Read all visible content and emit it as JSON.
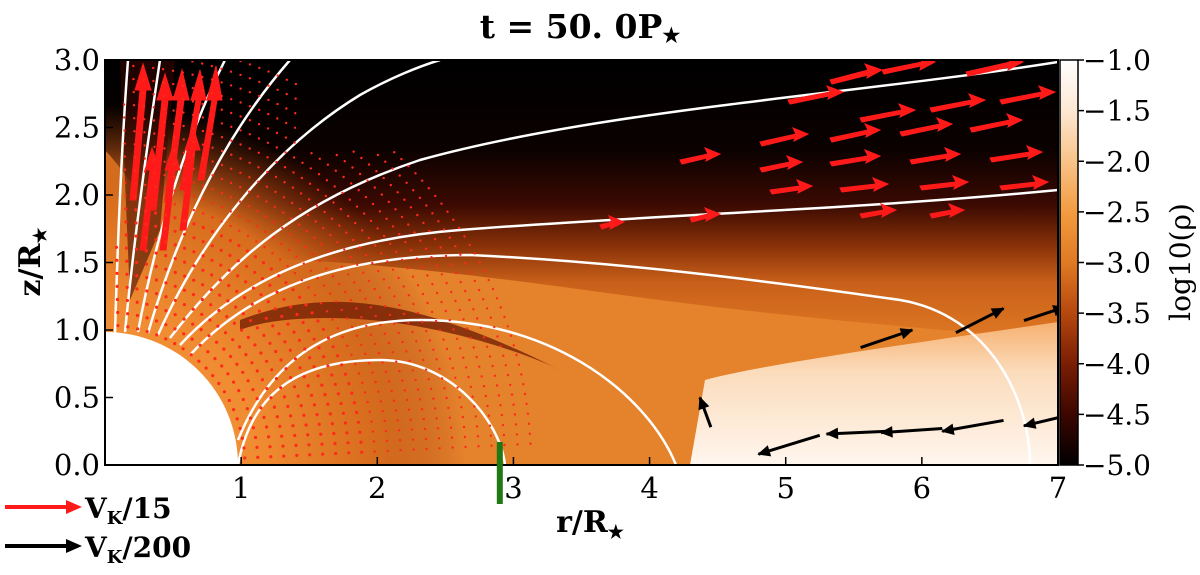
{
  "chart_data": {
    "type": "heatmap",
    "title": "t = 50. 0P",
    "title_star": "★",
    "xlabel": "r/R",
    "ylabel": "z/R",
    "label_star": "★",
    "xlim": [
      0,
      7
    ],
    "ylim": [
      0,
      3
    ],
    "x_ticks": [
      "1",
      "2",
      "3",
      "4",
      "5",
      "6",
      "7"
    ],
    "y_ticks": [
      "0.0",
      "0.5",
      "1.0",
      "1.5",
      "2.0",
      "2.5",
      "3.0"
    ],
    "colorbar": {
      "label": "log10(ρ)",
      "range": [
        -5.0,
        -1.0
      ],
      "ticks": [
        "-1.0",
        "-1.5",
        "-2.0",
        "-2.5",
        "-3.0",
        "-3.5",
        "-4.0",
        "-4.5",
        "-5.0"
      ],
      "colormap": [
        "#000000",
        "#3a0600",
        "#7a1e04",
        "#b84a0f",
        "#e07a22",
        "#f39a3e",
        "#f8c388",
        "#fde9d6",
        "#ffffff"
      ]
    },
    "field_lines_color": "#ffffff",
    "marker": {
      "x": 2.9,
      "color": "#1f7a16"
    },
    "legend": [
      {
        "label": "V",
        "sub": "K",
        "suffix": "/15",
        "color": "#ff1a1a"
      },
      {
        "label": "V",
        "sub": "K",
        "suffix": "/200",
        "color": "#000000"
      }
    ],
    "black_arrows": [
      {
        "x": 4.45,
        "y": 0.28,
        "dx": -0.08,
        "dy": 0.22
      },
      {
        "x": 5.25,
        "y": 0.22,
        "dx": -0.45,
        "dy": -0.14
      },
      {
        "x": 5.75,
        "y": 0.25,
        "dx": -0.45,
        "dy": -0.02
      },
      {
        "x": 6.15,
        "y": 0.27,
        "dx": -0.45,
        "dy": -0.03
      },
      {
        "x": 6.6,
        "y": 0.33,
        "dx": -0.45,
        "dy": -0.08
      },
      {
        "x": 7.0,
        "y": 0.35,
        "dx": -0.25,
        "dy": -0.06
      },
      {
        "x": 5.55,
        "y": 0.87,
        "dx": 0.38,
        "dy": 0.13
      },
      {
        "x": 6.25,
        "y": 0.98,
        "dx": 0.35,
        "dy": 0.18
      },
      {
        "x": 6.75,
        "y": 1.07,
        "dx": 0.3,
        "dy": 0.1
      }
    ]
  }
}
